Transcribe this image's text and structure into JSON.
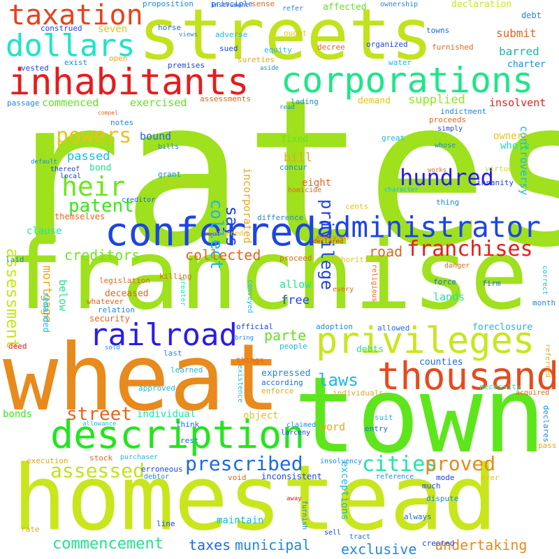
{
  "word_cloud": {
    "words": [
      {
        "id": "rates",
        "text": "rates",
        "color": "#9ee11c"
      },
      {
        "id": "franchise",
        "text": "franchise",
        "color": "#9ee11c"
      },
      {
        "id": "wheat",
        "text": "wheat",
        "color": "#e88a1c"
      },
      {
        "id": "town",
        "text": "town",
        "color": "#5ee61c"
      },
      {
        "id": "homestead",
        "text": "homestead",
        "color": "#c9e61c"
      },
      {
        "id": "streets",
        "text": "streets",
        "color": "#c2e21c"
      },
      {
        "id": "conferred",
        "text": "conferred",
        "color": "#1c44e6"
      },
      {
        "id": "administrator",
        "text": "administrator",
        "color": "#1c44e6"
      },
      {
        "id": "description",
        "text": "description",
        "color": "#22e61c"
      },
      {
        "id": "privileges",
        "text": "privileges",
        "color": "#c9e61c"
      },
      {
        "id": "thousand",
        "text": "thousand",
        "color": "#e64a1c"
      },
      {
        "id": "inhabitants",
        "text": "inhabitants",
        "color": "#e61c1c"
      },
      {
        "id": "corporations",
        "text": "corporations",
        "color": "#1ce68a"
      },
      {
        "id": "railroad",
        "text": "railroad",
        "color": "#2a1ce6"
      },
      {
        "id": "taxation",
        "text": "taxation",
        "color": "#e6421c"
      },
      {
        "id": "dollars",
        "text": "dollars",
        "color": "#1ce6c8"
      },
      {
        "id": "prescribed",
        "text": "prescribed",
        "color": "#1c6ae6"
      },
      {
        "id": "franchises",
        "text": "franchises",
        "color": "#e61c1c"
      },
      {
        "id": "heir",
        "text": "heir",
        "color": "#6ee61c"
      },
      {
        "id": "patent",
        "text": "patent",
        "color": "#3ae61c"
      },
      {
        "id": "powers",
        "text": "powers",
        "color": "#e6c21c"
      },
      {
        "id": "hundred",
        "text": "hundred",
        "color": "#2a1ce6"
      },
      {
        "id": "assessed",
        "text": "assessed",
        "color": "#c2e21c"
      },
      {
        "id": "cities",
        "text": "cities",
        "color": "#1ce6a8"
      },
      {
        "id": "proved",
        "text": "proved",
        "color": "#e68a1c"
      },
      {
        "id": "commencement",
        "text": "commencement",
        "color": "#1ce68a"
      },
      {
        "id": "taxes",
        "text": "taxes",
        "color": "#1c6ae6"
      },
      {
        "id": "municipal",
        "text": "municipal",
        "color": "#1c88e6"
      },
      {
        "id": "exclusive",
        "text": "exclusive",
        "color": "#1c88e6"
      },
      {
        "id": "undertaking",
        "text": "undertaking",
        "color": "#e68a1c"
      },
      {
        "id": "laws",
        "text": "laws",
        "color": "#1cb8e6"
      },
      {
        "id": "street",
        "text": "street",
        "color": "#e6641c"
      },
      {
        "id": "collect",
        "text": "collect",
        "color": "#1cb8e6"
      },
      {
        "id": "says",
        "text": "says",
        "color": "#1c44e6"
      },
      {
        "id": "privilege",
        "text": "privilege",
        "color": "#1c44e6"
      },
      {
        "id": "assessment",
        "text": "assessment",
        "color": "#c9e61c"
      },
      {
        "id": "collected",
        "text": "collected",
        "color": "#e6641c"
      },
      {
        "id": "creditors",
        "text": "creditors",
        "color": "#6ee61c"
      },
      {
        "id": "road",
        "text": "road",
        "color": "#e6641c"
      },
      {
        "id": "parte",
        "text": "parte",
        "color": "#5ee61c"
      },
      {
        "id": "commenced",
        "text": "commenced",
        "color": "#5ee61c"
      },
      {
        "id": "exercised",
        "text": "exercised",
        "color": "#5ee61c"
      },
      {
        "id": "supplied",
        "text": "supplied",
        "color": "#8ee61c"
      },
      {
        "id": "submit",
        "text": "submit",
        "color": "#e6641c"
      },
      {
        "id": "barred",
        "text": "barred",
        "color": "#1cb8a0"
      },
      {
        "id": "insolvent",
        "text": "insolvent",
        "color": "#e61c1c"
      },
      {
        "id": "demand",
        "text": "demand",
        "color": "#e6c21c"
      },
      {
        "id": "passed",
        "text": "passed",
        "color": "#1cb8e6"
      },
      {
        "id": "bound",
        "text": "bound",
        "color": "#1c6ae6"
      },
      {
        "id": "bill",
        "text": "bill",
        "color": "#e6a81c"
      },
      {
        "id": "eight",
        "text": "eight",
        "color": "#e6641c"
      },
      {
        "id": "incorporated",
        "text": "incorporated",
        "color": "#e6a81c"
      },
      {
        "id": "mortgage",
        "text": "mortgage",
        "color": "#e6a81c"
      },
      {
        "id": "below",
        "text": "below",
        "color": "#1ce68a"
      },
      {
        "id": "controversy",
        "text": "controversy",
        "color": "#1cb8e6"
      },
      {
        "id": "allow",
        "text": "allow",
        "color": "#1ce68a"
      },
      {
        "id": "free",
        "text": "free",
        "color": "#1c44e6"
      },
      {
        "id": "lands",
        "text": "lands",
        "color": "#1ce6a8"
      },
      {
        "id": "owners",
        "text": "owners",
        "color": "#e6c21c"
      },
      {
        "id": "whole",
        "text": "whole",
        "color": "#1ce6a8"
      },
      {
        "id": "seven",
        "text": "seven",
        "color": "#e6c21c"
      },
      {
        "id": "declaration",
        "text": "declaration",
        "color": "#c9e61c"
      },
      {
        "id": "affected",
        "text": "affected",
        "color": "#5ee61c"
      },
      {
        "id": "debt",
        "text": "debt",
        "color": "#1c88e6"
      },
      {
        "id": "fixed",
        "text": "fixed",
        "color": "#5ee61c"
      },
      {
        "id": "bond",
        "text": "bond",
        "color": "#1ce68a"
      },
      {
        "id": "clause",
        "text": "clause",
        "color": "#1ce6a8"
      },
      {
        "id": "object",
        "text": "object",
        "color": "#e6c21c"
      },
      {
        "id": "bonds",
        "text": "bonds",
        "color": "#3ae61c"
      },
      {
        "id": "individual",
        "text": "individual",
        "color": "#1ce6a8"
      },
      {
        "id": "counties",
        "text": "counties",
        "color": "#1c6ae6"
      },
      {
        "id": "debts",
        "text": "debts",
        "color": "#1ce68a"
      },
      {
        "id": "expressed",
        "text": "expressed",
        "color": "#1c88e6"
      },
      {
        "id": "word",
        "text": "word",
        "color": "#e6a81c"
      },
      {
        "id": "exceptions",
        "text": "exceptions",
        "color": "#1cb8e6"
      },
      {
        "id": "maintain",
        "text": "maintain",
        "color": "#1cb8e6"
      },
      {
        "id": "foreclosure",
        "text": "foreclosure",
        "color": "#1cb8e6"
      },
      {
        "id": "themselves",
        "text": "themselves",
        "color": "#e6641c"
      },
      {
        "id": "remanded",
        "text": "remanded",
        "color": "#1cb8e6"
      },
      {
        "id": "deceased",
        "text": "deceased",
        "color": "#e6641c"
      },
      {
        "id": "security",
        "text": "security",
        "color": "#e6641c"
      },
      {
        "id": "legislation",
        "text": "legislation",
        "color": "#e6641c"
      },
      {
        "id": "grant",
        "text": "grant",
        "color": "#1c88e6"
      },
      {
        "id": "concur",
        "text": "concur",
        "color": "#1c88e6"
      },
      {
        "id": "virtue",
        "text": "virtue",
        "color": "#c2e21c"
      },
      {
        "id": "insanity",
        "text": "insanity",
        "color": "#1c44e6"
      },
      {
        "id": "thing",
        "text": "thing",
        "color": "#1c88e6"
      },
      {
        "id": "difference",
        "text": "difference",
        "color": "#1c88e6"
      },
      {
        "id": "cents",
        "text": "cents",
        "color": "#e6c21c"
      },
      {
        "id": "proceed",
        "text": "proceed",
        "color": "#e6641c"
      },
      {
        "id": "authorities",
        "text": "authorities",
        "color": "#e6c21c"
      },
      {
        "id": "force",
        "text": "force",
        "color": "#1c6ae6"
      },
      {
        "id": "firm",
        "text": "firm",
        "color": "#1c6ae6"
      },
      {
        "id": "month",
        "text": "month",
        "color": "#1c88e6"
      },
      {
        "id": "correct",
        "text": "correct",
        "color": "#1cb8e6"
      },
      {
        "id": "official",
        "text": "official",
        "color": "#1c44e6"
      },
      {
        "id": "adoption",
        "text": "adoption",
        "color": "#1c88e6"
      },
      {
        "id": "allowed",
        "text": "allowed",
        "color": "#1c6ae6"
      },
      {
        "id": "people",
        "text": "people",
        "color": "#1cb8e6"
      },
      {
        "id": "things",
        "text": "things",
        "color": "#e6641c"
      },
      {
        "id": "according",
        "text": "according",
        "color": "#1c6ae6"
      },
      {
        "id": "enforce",
        "text": "enforce",
        "color": "#e6a81c"
      },
      {
        "id": "necessity",
        "text": "necessity",
        "color": "#1ce6a8"
      },
      {
        "id": "individuals",
        "text": "individuals",
        "color": "#e6a81c"
      },
      {
        "id": "entry",
        "text": "entry",
        "color": "#1c6ae6"
      },
      {
        "id": "suit",
        "text": "suit",
        "color": "#1cb8e6"
      },
      {
        "id": "dispute",
        "text": "dispute",
        "color": "#1c88e6"
      },
      {
        "id": "declares",
        "text": "declares",
        "color": "#1c88e6"
      },
      {
        "id": "acquired",
        "text": "acquired",
        "color": "#e6641c"
      },
      {
        "id": "referred",
        "text": "referred",
        "color": "#e6a81c"
      },
      {
        "id": "pass",
        "text": "pass",
        "color": "#e6a81c"
      },
      {
        "id": "conveyed",
        "text": "conveyed",
        "color": "#1cb8e6"
      },
      {
        "id": "religious",
        "text": "religious",
        "color": "#e6641c"
      },
      {
        "id": "every",
        "text": "every",
        "color": "#e6641c"
      },
      {
        "id": "greater",
        "text": "greater",
        "color": "#1ce6a8"
      },
      {
        "id": "whatever",
        "text": "whatever",
        "color": "#e6641c"
      },
      {
        "id": "relation",
        "text": "relation",
        "color": "#1c88e6"
      },
      {
        "id": "killing",
        "text": "killing",
        "color": "#e6641c"
      },
      {
        "id": "mentioned",
        "text": "mentioned",
        "color": "#e6c21c"
      },
      {
        "id": "creditor",
        "text": "creditor",
        "color": "#1c6ae6"
      },
      {
        "id": "certainly",
        "text": "certainly",
        "color": "#e6c21c"
      },
      {
        "id": "homicide",
        "text": "homicide",
        "color": "#e6641c"
      },
      {
        "id": "works",
        "text": "works",
        "color": "#e6641c"
      },
      {
        "id": "character",
        "text": "character",
        "color": "#1cb8e6"
      },
      {
        "id": "absolutely",
        "text": "absolutely",
        "color": "#e6641c"
      },
      {
        "id": "danger",
        "text": "danger",
        "color": "#e6641c"
      },
      {
        "id": "last",
        "text": "last",
        "color": "#1c88e6"
      },
      {
        "id": "learned",
        "text": "learned",
        "color": "#1cb8e6"
      },
      {
        "id": "approved",
        "text": "approved",
        "color": "#1cb8e6"
      },
      {
        "id": "existence",
        "text": "existence",
        "color": "#1cb8e6"
      },
      {
        "id": "claimed",
        "text": "claimed",
        "color": "#1c88e6"
      },
      {
        "id": "larceny",
        "text": "larceny",
        "color": "#1c44e6"
      },
      {
        "id": "think",
        "text": "think",
        "color": "#1c6ae6"
      },
      {
        "id": "rest",
        "text": "rest",
        "color": "#1c6ae6"
      },
      {
        "id": "allowance",
        "text": "allowance",
        "color": "#1cb8e6"
      },
      {
        "id": "stock",
        "text": "stock",
        "color": "#e6641c"
      },
      {
        "id": "purchaser",
        "text": "purchaser",
        "color": "#1cb8e6"
      },
      {
        "id": "erroneous",
        "text": "erroneous",
        "color": "#1c44e6"
      },
      {
        "id": "debtor",
        "text": "debtor",
        "color": "#1c88e6"
      },
      {
        "id": "void",
        "text": "void",
        "color": "#e6641c"
      },
      {
        "id": "inconsistent",
        "text": "inconsistent",
        "color": "#1c44e6"
      },
      {
        "id": "insolvency",
        "text": "insolvency",
        "color": "#1c88e6"
      },
      {
        "id": "reference",
        "text": "reference",
        "color": "#1c88e6"
      },
      {
        "id": "mode",
        "text": "mode",
        "color": "#1c44e6"
      },
      {
        "id": "much",
        "text": "much",
        "color": "#1c44e6"
      },
      {
        "id": "ever",
        "text": "ever",
        "color": "#e6c21c"
      },
      {
        "id": "away",
        "text": "away",
        "color": "#e61c1c"
      },
      {
        "id": "furnish",
        "text": "furnish",
        "color": "#1c88e6"
      },
      {
        "id": "always",
        "text": "always",
        "color": "#1c6ae6"
      },
      {
        "id": "sell",
        "text": "sell",
        "color": "#1c44e6"
      },
      {
        "id": "tract",
        "text": "tract",
        "color": "#1c6ae6"
      },
      {
        "id": "created",
        "text": "created",
        "color": "#1c44e6"
      },
      {
        "id": "line",
        "text": "line",
        "color": "#1c44e6"
      },
      {
        "id": "rate",
        "text": "rate",
        "color": "#e6a81c"
      },
      {
        "id": "execution",
        "text": "execution",
        "color": "#e6a81c"
      },
      {
        "id": "deed",
        "text": "deed",
        "color": "#e61c1c"
      },
      {
        "id": "sold",
        "text": "sold",
        "color": "#1c88e6"
      },
      {
        "id": "bring",
        "text": "bring",
        "color": "#1c88e6"
      },
      {
        "id": "laid",
        "text": "laid",
        "color": "#1c88e6"
      },
      {
        "id": "default",
        "text": "default",
        "color": "#1c88e6"
      },
      {
        "id": "thereof",
        "text": "thereof",
        "color": "#1c44e6"
      },
      {
        "id": "local",
        "text": "local",
        "color": "#1c44e6"
      },
      {
        "id": "bills",
        "text": "bills",
        "color": "#1c88e6"
      },
      {
        "id": "notes",
        "text": "notes",
        "color": "#1c88e6"
      },
      {
        "id": "compel",
        "text": "compel",
        "color": "#e6641c"
      },
      {
        "id": "passage",
        "text": "passage",
        "color": "#1c88e6"
      },
      {
        "id": "vested",
        "text": "vested",
        "color": "#1c44e6"
      },
      {
        "id": "exist",
        "text": "exist",
        "color": "#1c88e6"
      },
      {
        "id": "open",
        "text": "open",
        "color": "#e6a81c"
      },
      {
        "id": "construed",
        "text": "construed",
        "color": "#1c44e6"
      },
      {
        "id": "horse",
        "text": "horse",
        "color": "#1c6ae6"
      },
      {
        "id": "views",
        "text": "views",
        "color": "#1c88e6"
      },
      {
        "id": "premises",
        "text": "premises",
        "color": "#1c44e6"
      },
      {
        "id": "adverse",
        "text": "adverse",
        "color": "#1cb8e6"
      },
      {
        "id": "sued",
        "text": "sued",
        "color": "#1c44e6"
      },
      {
        "id": "sureties",
        "text": "sureties",
        "color": "#e6a81c"
      },
      {
        "id": "aside",
        "text": "aside",
        "color": "#1c88e6"
      },
      {
        "id": "assessments",
        "text": "assessments",
        "color": "#e6641c"
      },
      {
        "id": "lading",
        "text": "lading",
        "color": "#1c88e6"
      },
      {
        "id": "proceeds",
        "text": "proceeds",
        "color": "#e6641c"
      },
      {
        "id": "simply",
        "text": "simply",
        "color": "#1c44e6"
      },
      {
        "id": "whose",
        "text": "whose",
        "color": "#1c88e6"
      },
      {
        "id": "great",
        "text": "great",
        "color": "#1cb8e6"
      },
      {
        "id": "indictment",
        "text": "indictment",
        "color": "#1c88e6"
      },
      {
        "id": "read",
        "text": "read",
        "color": "#1c88e6"
      },
      {
        "id": "refer",
        "text": "refer",
        "color": "#1c88e6"
      },
      {
        "id": "equity",
        "text": "equity",
        "color": "#1cb8e6"
      },
      {
        "id": "ought",
        "text": "ought",
        "color": "#e6c21c"
      },
      {
        "id": "instrument",
        "text": "instrument",
        "color": "#1c44e6"
      },
      {
        "id": "principle",
        "text": "principle",
        "color": "#1c6ae6"
      },
      {
        "id": "proposition",
        "text": "proposition",
        "color": "#1c88e6"
      },
      {
        "id": "sense",
        "text": "sense",
        "color": "#e6641c"
      },
      {
        "id": "ownership",
        "text": "ownership",
        "color": "#1c88e6"
      },
      {
        "id": "towns",
        "text": "towns",
        "color": "#1c6ae6"
      },
      {
        "id": "furnished",
        "text": "furnished",
        "color": "#e6641c"
      },
      {
        "id": "organized",
        "text": "organized",
        "color": "#1c44e6"
      },
      {
        "id": "decree",
        "text": "decree",
        "color": "#e6641c"
      },
      {
        "id": "water",
        "text": "water",
        "color": "#1cb8e6"
      },
      {
        "id": "charter",
        "text": "charter",
        "color": "#1c88e6"
      },
      {
        "id": "declared",
        "text": "declared",
        "color": "#e61c1c"
      }
    ]
  }
}
